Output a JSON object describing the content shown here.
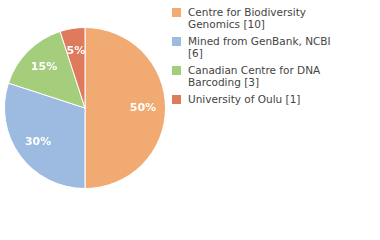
{
  "chart_data": {
    "type": "pie",
    "categories": [
      "Centre for Biodiversity Genomics [10]",
      "Mined from GenBank, NCBI [6]",
      "Canadian Centre for DNA Barcoding [3]",
      "University of Oulu [1]"
    ],
    "values": [
      50,
      30,
      15,
      5
    ],
    "value_labels": [
      "50%",
      "30%",
      "15%",
      "5%"
    ],
    "colors": [
      "#f0aa72",
      "#9dbbe0",
      "#a4cd7c",
      "#e07a5c"
    ],
    "data_labels": true,
    "legend": "right"
  }
}
